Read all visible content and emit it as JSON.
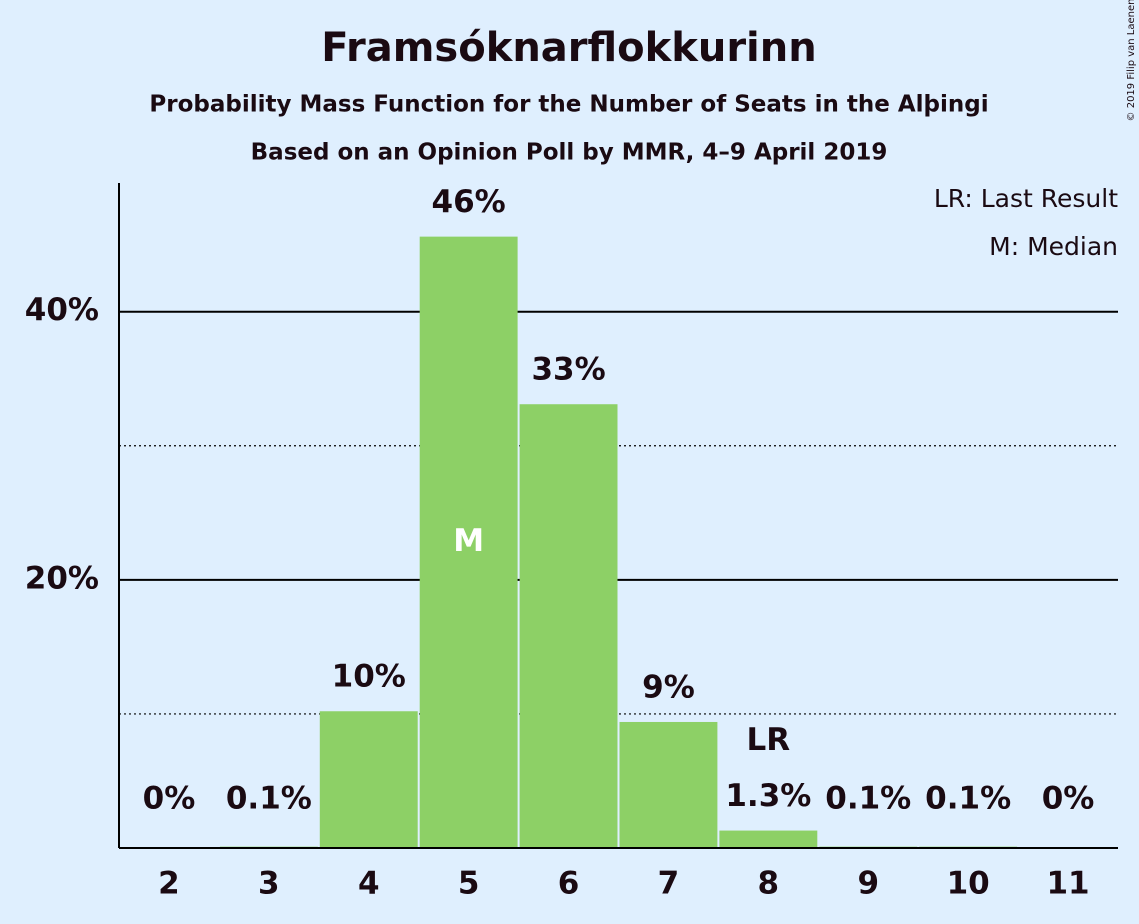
{
  "chart_data": {
    "type": "bar",
    "title": "Framsóknarflokkurinn",
    "subtitle": "Probability Mass Function for the Number of Seats in the Alþingi",
    "source": "Based on an Opinion Poll by MMR, 4–9 April 2019",
    "copyright": "© 2019 Filip van Laenen",
    "legend": [
      "LR: Last Result",
      "M: Median"
    ],
    "categories": [
      "2",
      "3",
      "4",
      "5",
      "6",
      "7",
      "8",
      "9",
      "10",
      "11"
    ],
    "values": [
      0,
      0.1,
      10.2,
      45.6,
      33.1,
      9.4,
      1.3,
      0.1,
      0.1,
      0
    ],
    "value_labels": [
      "0%",
      "0.1%",
      "10%",
      "46%",
      "33%",
      "9%",
      "1.3%",
      "0.1%",
      "0.1%",
      "0%"
    ],
    "color": "#8dd066",
    "ylim": [
      0,
      49.6
    ],
    "yticks": [
      {
        "value": 20,
        "label": "20%"
      },
      {
        "value": 40,
        "label": "40%"
      }
    ],
    "minor_grid": [
      10,
      30
    ],
    "grid": true,
    "annotations": [
      {
        "label": "M",
        "category": "5"
      },
      {
        "label": "LR",
        "category": "8"
      }
    ]
  }
}
